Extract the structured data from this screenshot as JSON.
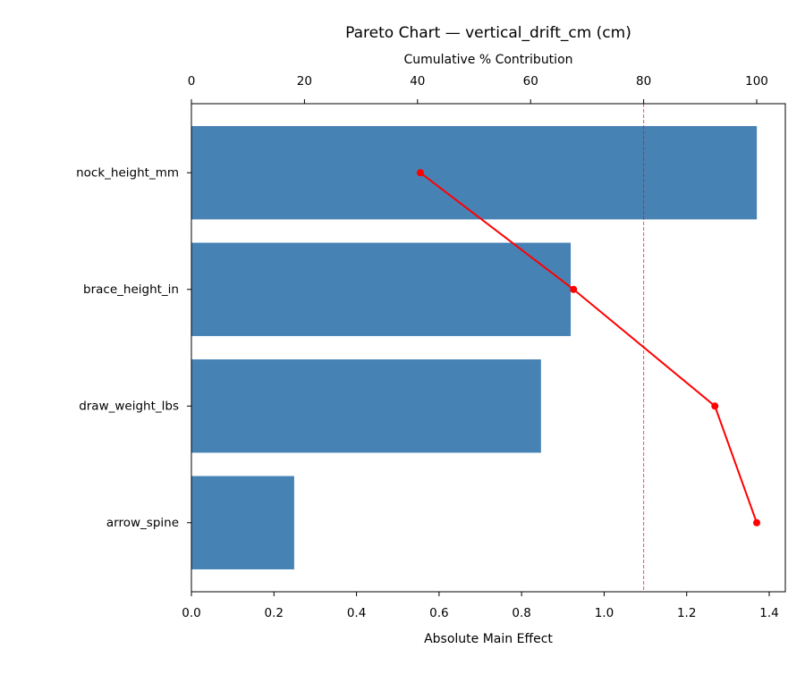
{
  "chart_data": {
    "type": "pareto",
    "title": "Pareto Chart — vertical_drift_cm (cm)",
    "xlabel": "Absolute Main Effect",
    "x2label": "Cumulative % Contribution",
    "categories": [
      "nock_height_mm",
      "brace_height_in",
      "draw_weight_lbs",
      "arrow_spine"
    ],
    "values": [
      1.37,
      0.919,
      0.847,
      0.249
    ],
    "color": "#4682b4",
    "cumulative_values": [
      40.5,
      67.6,
      92.6,
      100
    ],
    "line_color": "#ff0000",
    "reference_line": 80,
    "xlim": [
      0,
      1.439
    ],
    "xticks": [
      {
        "value": 0,
        "label": "0.0"
      },
      0.2,
      0.4,
      0.6,
      0.8,
      {
        "value": 1,
        "label": "1.0"
      },
      1.2,
      1.4
    ],
    "x2lim": [
      0,
      105.06
    ],
    "x2ticks": [
      0,
      20,
      40,
      60,
      80,
      100
    ]
  }
}
